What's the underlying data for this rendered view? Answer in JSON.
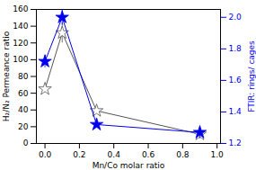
{
  "chart_data": {
    "type": "line",
    "x": [
      0.0,
      0.1,
      0.3,
      0.9
    ],
    "xlabel": "Mn/Co molar ratio",
    "xlim": [
      -0.05,
      1.02
    ],
    "xticks": [
      {
        "value": 0.0,
        "label": "0.0"
      },
      0.2,
      0.4,
      0.6,
      0.8,
      {
        "value": 1.0,
        "label": "1.0"
      }
    ],
    "ylabel": "H₂/N₂ Permeance ratio",
    "ylim": [
      0,
      160
    ],
    "yticks": [
      0,
      20,
      40,
      60,
      80,
      100,
      120,
      140,
      160
    ],
    "y2label": "FTIR: rings/ cages",
    "y2lim": [
      1.2,
      2.05
    ],
    "y2ticks": [
      1.2,
      1.4,
      1.6,
      1.8,
      {
        "value": 2.0,
        "label": "2.0"
      }
    ],
    "series": [
      {
        "values": [
          65,
          132,
          39,
          11
        ],
        "errors": [
          4,
          12,
          3,
          2
        ],
        "color": "#555555",
        "marker": "open_star",
        "line_style": "solid"
      },
      {
        "values": [
          1.72,
          2.0,
          1.32,
          1.27
        ],
        "errors": [
          0.04,
          0.05,
          0.02,
          0.04
        ],
        "color": "#0000ee",
        "marker": "star",
        "line_style": "solid",
        "axis": "y2"
      }
    ]
  }
}
